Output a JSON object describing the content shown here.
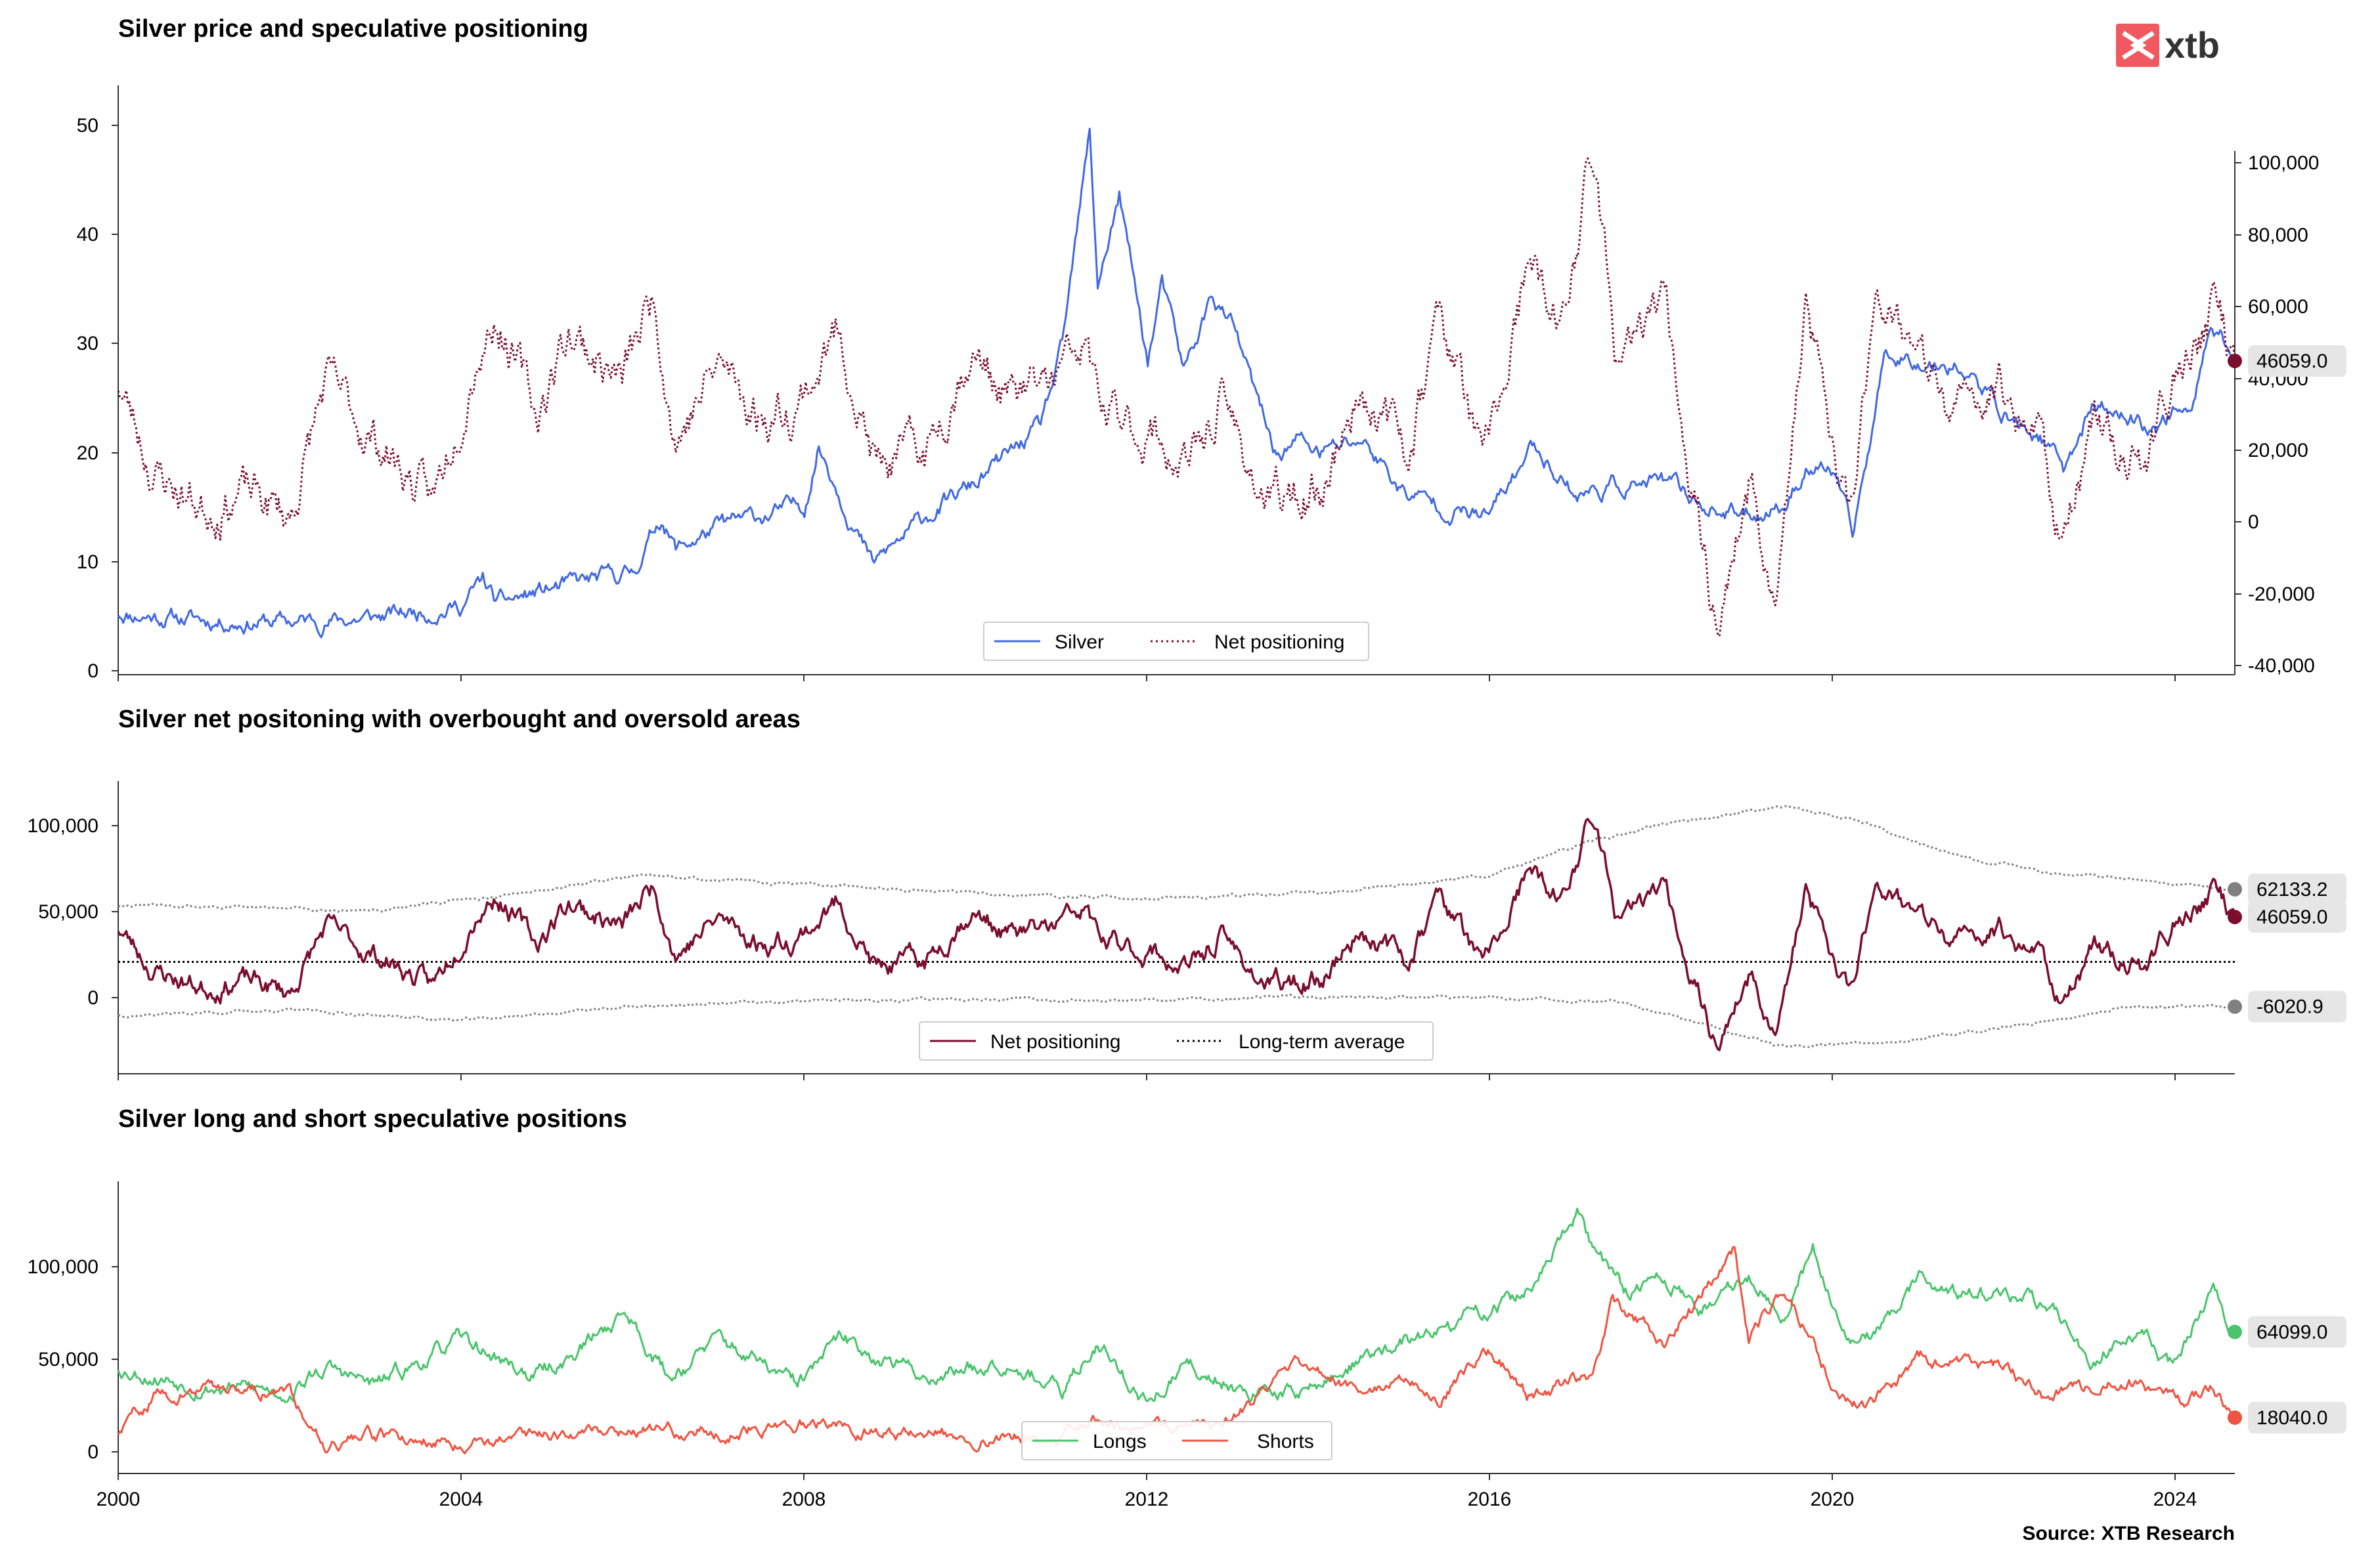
{
  "logo": {
    "text": "xtb",
    "mark_color": "#f0595f",
    "text_color": "#333333"
  },
  "source": "Source: XTB Research",
  "x_axis": {
    "type": "date",
    "range": [
      "2000-01-01",
      "2024-08-31"
    ],
    "ticks": [
      "2000",
      "2004",
      "2008",
      "2012",
      "2016",
      "2020",
      "2024"
    ],
    "tick_labels_shown_on": "bottom-panel"
  },
  "colors": {
    "silver": "#4169e1",
    "net": "#7a0e2e",
    "band": "#808080",
    "average": "#000000",
    "longs": "#4bc46d",
    "shorts": "#ef5442",
    "badge_bg": "#e6e6e6"
  },
  "chart_data": [
    {
      "type": "line",
      "title": "Silver price and speculative positioning",
      "legend": {
        "placement": "bottom-center",
        "entries": [
          "Silver",
          "Net positioning"
        ]
      },
      "left_axis": {
        "ylim": [
          0,
          53
        ],
        "ticks": [
          "0",
          "10",
          "20",
          "30",
          "40",
          "50"
        ]
      },
      "right_axis": {
        "ylim": [
          -42000,
          105000
        ],
        "ticks": [
          "-40,000",
          "-20,000",
          "0",
          "20,000",
          "40,000",
          "60,000",
          "80,000",
          "100,000"
        ]
      },
      "series": [
        {
          "name": "Silver",
          "axis": "left",
          "style": "solid",
          "color": "#4169e1",
          "x": [
            "2000-01-01",
            "2001-01-01",
            "2002-01-01",
            "2003-01-01",
            "2004-01-01",
            "2004-04-01",
            "2004-06-01",
            "2005-01-01",
            "2005-12-31",
            "2006-05-01",
            "2006-07-01",
            "2007-01-01",
            "2007-12-31",
            "2008-03-01",
            "2008-10-15",
            "2009-06-01",
            "2010-01-01",
            "2010-10-01",
            "2011-01-01",
            "2011-04-28",
            "2011-06-01",
            "2011-09-01",
            "2011-12-31",
            "2012-03-01",
            "2012-06-01",
            "2012-10-01",
            "2013-01-01",
            "2013-04-15",
            "2013-07-01",
            "2013-10-01",
            "2014-01-01",
            "2014-07-01",
            "2015-01-01",
            "2015-07-01",
            "2015-12-15",
            "2016-07-01",
            "2017-01-01",
            "2017-07-01",
            "2018-01-01",
            "2018-07-01",
            "2018-11-15",
            "2019-06-01",
            "2019-09-01",
            "2020-01-01",
            "2020-03-18",
            "2020-08-07",
            "2021-02-01",
            "2021-06-01",
            "2022-01-01",
            "2022-06-01",
            "2022-09-01",
            "2023-01-01",
            "2023-06-01",
            "2023-10-01",
            "2024-01-01",
            "2024-03-01",
            "2024-05-20",
            "2024-08-31"
          ],
          "values": [
            5.3,
            4.6,
            4.4,
            4.8,
            5.9,
            8.2,
            6.0,
            7.3,
            8.9,
            14.0,
            11.0,
            13.0,
            15.0,
            20.5,
            9.5,
            14.0,
            17.0,
            22.0,
            29.0,
            48.5,
            35.0,
            43.0,
            28.0,
            35.0,
            27.0,
            34.0,
            31.0,
            24.0,
            19.5,
            21.0,
            19.7,
            21.0,
            16.0,
            14.8,
            13.8,
            20.5,
            16.0,
            16.8,
            17.0,
            15.0,
            14.0,
            15.0,
            18.5,
            18.0,
            12.0,
            29.0,
            28.0,
            28.0,
            23.0,
            21.0,
            18.0,
            24.0,
            23.0,
            22.0,
            24.0,
            23.0,
            32.0,
            28.5
          ]
        },
        {
          "name": "Net positioning",
          "axis": "right",
          "style": "dotted",
          "color": "#7a0e2e",
          "x": [
            "2000-01-01",
            "2000-06-01",
            "2001-01-01",
            "2001-06-01",
            "2002-01-01",
            "2002-06-01",
            "2002-10-01",
            "2003-03-01",
            "2003-09-01",
            "2004-03-01",
            "2004-06-01",
            "2004-11-15",
            "2005-04-01",
            "2005-11-15",
            "2006-04-01",
            "2006-07-01",
            "2007-01-01",
            "2007-07-01",
            "2007-12-01",
            "2008-06-01",
            "2008-11-01",
            "2009-06-01",
            "2009-12-01",
            "2010-06-01",
            "2010-12-01",
            "2011-04-01",
            "2011-07-01",
            "2012-02-01",
            "2012-07-01",
            "2012-11-01",
            "2013-06-01",
            "2014-01-01",
            "2014-07-01",
            "2015-01-01",
            "2015-06-01",
            "2015-12-01",
            "2016-06-01",
            "2016-11-01",
            "2017-03-01",
            "2017-07-01",
            "2018-01-01",
            "2018-08-15",
            "2019-01-01",
            "2019-05-01",
            "2019-09-01",
            "2020-03-01",
            "2020-07-01",
            "2021-01-01",
            "2021-06-01",
            "2021-12-01",
            "2022-06-01",
            "2022-09-01",
            "2023-02-01",
            "2023-08-01",
            "2024-01-01",
            "2024-06-01",
            "2024-08-31"
          ],
          "values": [
            40000,
            15000,
            5000,
            10000,
            2000,
            40000,
            30000,
            20000,
            5000,
            50000,
            60000,
            30000,
            55000,
            40000,
            65000,
            25000,
            45000,
            30000,
            35000,
            55000,
            15000,
            20000,
            50000,
            35000,
            40000,
            50000,
            30000,
            25000,
            15000,
            35000,
            5000,
            10000,
            40000,
            20000,
            60000,
            15000,
            70000,
            55000,
            105000,
            40000,
            65000,
            -28000,
            10000,
            -20000,
            60000,
            0,
            70000,
            45000,
            30000,
            40000,
            25000,
            -5000,
            30000,
            15000,
            45000,
            60000,
            46059
          ]
        }
      ],
      "end_markers": [
        {
          "label": "46059.0",
          "series": "Net positioning",
          "value": 46059
        }
      ]
    },
    {
      "type": "line",
      "title": "Silver net positoning with overbought and oversold areas",
      "legend": {
        "placement": "bottom-center",
        "entries": [
          "Net positioning",
          "Long-term average"
        ]
      },
      "ylim": [
        -45000,
        125000
      ],
      "y_ticks": [
        "0",
        "50,000",
        "100,000"
      ],
      "series": [
        {
          "name": "Net positioning",
          "style": "solid",
          "color": "#7a0e2e",
          "x": [
            "2000-01-01",
            "2000-06-01",
            "2001-01-01",
            "2001-06-01",
            "2002-01-01",
            "2002-06-01",
            "2002-10-01",
            "2003-03-01",
            "2003-09-01",
            "2004-03-01",
            "2004-06-01",
            "2004-11-15",
            "2005-04-01",
            "2005-11-15",
            "2006-04-01",
            "2006-07-01",
            "2007-01-01",
            "2007-07-01",
            "2007-12-01",
            "2008-06-01",
            "2008-11-01",
            "2009-06-01",
            "2009-12-01",
            "2010-06-01",
            "2010-12-01",
            "2011-04-01",
            "2011-07-01",
            "2012-02-01",
            "2012-07-01",
            "2012-11-01",
            "2013-06-01",
            "2014-01-01",
            "2014-07-01",
            "2015-01-01",
            "2015-06-01",
            "2015-12-01",
            "2016-06-01",
            "2016-11-01",
            "2017-03-01",
            "2017-07-01",
            "2018-01-01",
            "2018-08-15",
            "2019-01-01",
            "2019-05-01",
            "2019-09-01",
            "2020-03-01",
            "2020-07-01",
            "2021-01-01",
            "2021-06-01",
            "2021-12-01",
            "2022-06-01",
            "2022-09-01",
            "2023-02-01",
            "2023-08-01",
            "2024-01-01",
            "2024-06-01",
            "2024-08-31"
          ],
          "values": [
            40000,
            15000,
            5000,
            10000,
            2000,
            40000,
            30000,
            20000,
            5000,
            50000,
            60000,
            30000,
            55000,
            40000,
            65000,
            25000,
            45000,
            30000,
            35000,
            55000,
            15000,
            20000,
            50000,
            35000,
            40000,
            50000,
            30000,
            25000,
            15000,
            35000,
            5000,
            10000,
            40000,
            20000,
            60000,
            15000,
            70000,
            55000,
            105000,
            40000,
            65000,
            -28000,
            10000,
            -20000,
            60000,
            0,
            70000,
            45000,
            30000,
            40000,
            25000,
            -5000,
            30000,
            15000,
            45000,
            60000,
            46059
          ]
        },
        {
          "name": "Long-term average",
          "style": "dotted",
          "color": "#000000",
          "x": [
            "2000-01-01",
            "2024-08-31"
          ],
          "values": [
            20000,
            20000
          ]
        },
        {
          "name": "upper band",
          "style": "dotted",
          "color": "#808080",
          "x": [
            "2000-01-01",
            "2003-01-01",
            "2004-06-01",
            "2006-01-01",
            "2008-01-01",
            "2010-01-01",
            "2012-01-01",
            "2014-01-01",
            "2016-01-01",
            "2017-01-01",
            "2018-01-01",
            "2019-06-01",
            "2020-06-01",
            "2021-06-01",
            "2022-06-01",
            "2024-08-31"
          ],
          "values": [
            53000,
            50000,
            58000,
            70000,
            65000,
            60000,
            57000,
            60000,
            70000,
            88000,
            100000,
            111000,
            100000,
            82000,
            72000,
            62133
          ]
        },
        {
          "name": "lower band",
          "style": "dotted",
          "color": "#808080",
          "x": [
            "2000-01-01",
            "2002-01-01",
            "2004-01-01",
            "2006-01-01",
            "2008-01-01",
            "2010-01-01",
            "2012-01-01",
            "2014-01-01",
            "2016-01-01",
            "2017-06-01",
            "2019-06-01",
            "2021-01-01",
            "2022-06-01",
            "2023-06-01",
            "2024-08-31"
          ],
          "values": [
            -11000,
            -8000,
            -14000,
            -6000,
            -3000,
            -1000,
            -3000,
            0,
            -1000,
            -3000,
            -29000,
            -25000,
            -15000,
            -6000,
            -6021
          ]
        }
      ],
      "end_markers": [
        {
          "label": "62133.2",
          "series": "upper band",
          "value": 62133.2
        },
        {
          "label": "46059.0",
          "series": "Net positioning",
          "value": 46059
        },
        {
          "label": "-6020.9",
          "series": "lower band",
          "value": -6020.9
        }
      ]
    },
    {
      "type": "line",
      "title": "Silver long and short speculative positions",
      "legend": {
        "placement": "bottom-center",
        "entries": [
          "Longs",
          "Shorts"
        ]
      },
      "ylim": [
        -12000,
        145000
      ],
      "y_ticks": [
        "0",
        "50,000",
        "100,000"
      ],
      "series": [
        {
          "name": "Longs",
          "style": "solid",
          "color": "#4bc46d",
          "x": [
            "2000-01-01",
            "2001-01-01",
            "2002-01-01",
            "2002-06-01",
            "2003-01-01",
            "2004-01-01",
            "2004-11-01",
            "2005-04-01",
            "2005-12-01",
            "2006-06-01",
            "2007-01-01",
            "2007-12-01",
            "2008-06-01",
            "2009-06-01",
            "2010-06-01",
            "2011-01-01",
            "2011-06-01",
            "2012-01-01",
            "2012-06-01",
            "2013-06-01",
            "2014-01-01",
            "2014-07-01",
            "2015-06-01",
            "2016-06-01",
            "2017-01-01",
            "2017-03-01",
            "2017-08-01",
            "2018-01-01",
            "2018-06-01",
            "2019-01-01",
            "2019-06-01",
            "2019-10-01",
            "2020-03-01",
            "2020-06-01",
            "2021-01-01",
            "2021-06-01",
            "2022-06-01",
            "2023-01-01",
            "2023-06-01",
            "2024-01-01",
            "2024-06-01",
            "2024-08-31"
          ],
          "values": [
            45000,
            35000,
            32000,
            45000,
            35000,
            60000,
            40000,
            50000,
            75000,
            40000,
            60000,
            35000,
            60000,
            40000,
            50000,
            30000,
            60000,
            25000,
            45000,
            30000,
            35000,
            50000,
            65000,
            85000,
            125000,
            110000,
            85000,
            95000,
            75000,
            95000,
            75000,
            110000,
            60000,
            60000,
            95000,
            85000,
            80000,
            50000,
            65000,
            45000,
            90000,
            64099
          ]
        },
        {
          "name": "Shorts",
          "style": "solid",
          "color": "#ef5442",
          "x": [
            "2000-01-01",
            "2000-06-01",
            "2001-06-01",
            "2002-01-01",
            "2002-06-01",
            "2003-01-01",
            "2004-01-01",
            "2005-01-01",
            "2006-01-01",
            "2007-01-01",
            "2008-01-01",
            "2009-01-01",
            "2010-01-01",
            "2011-01-01",
            "2011-06-01",
            "2012-01-01",
            "2013-01-01",
            "2013-10-01",
            "2014-06-01",
            "2015-01-01",
            "2015-06-01",
            "2016-01-01",
            "2016-06-01",
            "2017-03-01",
            "2017-06-01",
            "2018-01-01",
            "2018-06-01",
            "2018-11-01",
            "2019-01-01",
            "2019-06-01",
            "2020-01-01",
            "2020-06-01",
            "2021-01-01",
            "2022-01-01",
            "2022-06-01",
            "2023-01-01",
            "2023-06-01",
            "2024-01-01",
            "2024-06-01",
            "2024-08-31"
          ],
          "values": [
            10000,
            30000,
            35000,
            30000,
            5000,
            8000,
            5000,
            10000,
            12000,
            10000,
            15000,
            10000,
            8000,
            10000,
            15000,
            12000,
            20000,
            45000,
            35000,
            40000,
            30000,
            55000,
            30000,
            40000,
            80000,
            60000,
            80000,
            110000,
            60000,
            90000,
            35000,
            25000,
            50000,
            45000,
            30000,
            35000,
            40000,
            25000,
            35000,
            18040
          ]
        }
      ],
      "end_markers": [
        {
          "label": "64099.0",
          "series": "Longs",
          "value": 64099
        },
        {
          "label": "18040.0",
          "series": "Shorts",
          "value": 18040
        }
      ]
    }
  ]
}
